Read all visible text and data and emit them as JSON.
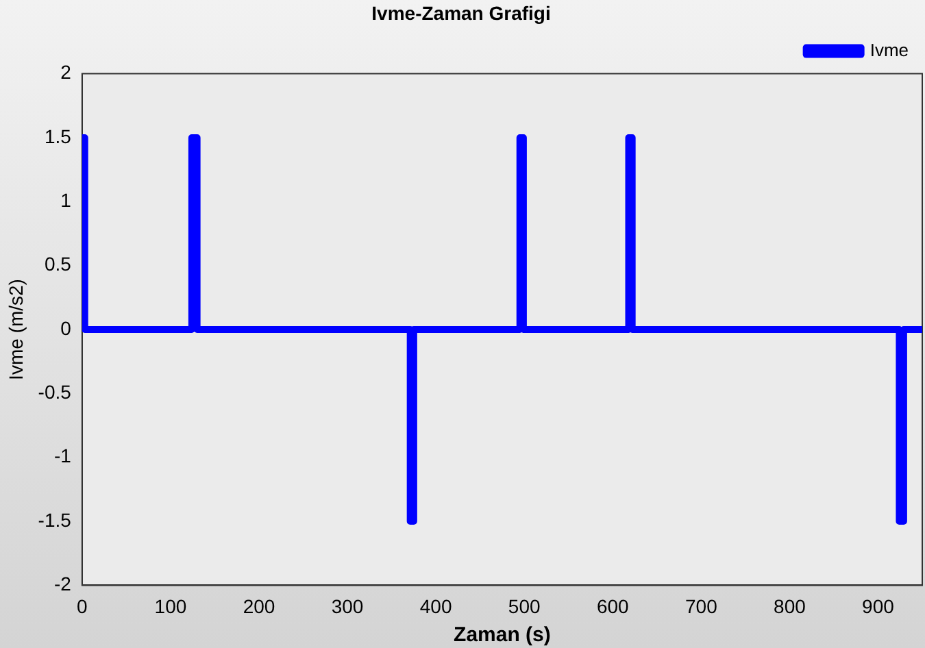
{
  "chart_data": {
    "type": "line",
    "title": "Ivme-Zaman Grafigi",
    "xlabel": "Zaman (s)",
    "ylabel": "Ivme (m/s2)",
    "xlim": [
      0,
      950
    ],
    "xticks": [
      0,
      100,
      200,
      300,
      400,
      500,
      600,
      700,
      800,
      900
    ],
    "ylim": [
      -2,
      2
    ],
    "yticks": [
      -2,
      -1.5,
      -1,
      -0.5,
      0,
      0.5,
      1,
      1.5,
      2
    ],
    "grid": false,
    "legend": "top right",
    "marker": "none",
    "line_style": "solid",
    "series": [
      {
        "name": "Ivme",
        "color": "#0000ff",
        "x": [
          0,
          0,
          3,
          3,
          124,
          124,
          130,
          130,
          371,
          371,
          375,
          375,
          495,
          495,
          499,
          499,
          618,
          618,
          622,
          622,
          924,
          924,
          929,
          929,
          950
        ],
        "values": [
          1.5,
          1.5,
          1.5,
          0,
          0,
          1.5,
          1.5,
          0,
          0,
          -1.5,
          -1.5,
          0,
          0,
          1.5,
          1.5,
          0,
          0,
          1.5,
          1.5,
          0,
          0,
          -1.5,
          -1.5,
          0,
          0
        ]
      }
    ]
  }
}
